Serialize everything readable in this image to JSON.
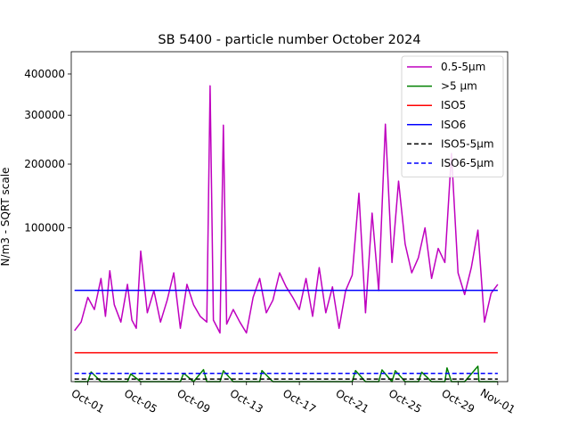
{
  "chart_data": {
    "type": "line",
    "title": "SB 5400 - particle number October 2024",
    "ylabel": "N/m3 - SQRT scale",
    "xlabel": "",
    "y_scale": "sqrt",
    "ylim": [
      0,
      460000
    ],
    "xlim": [
      "2024-09-29T18:00",
      "2024-11-01T18:00"
    ],
    "y_ticks": [
      {
        "value": 100000,
        "label": "100000"
      },
      {
        "value": 200000,
        "label": "200000"
      },
      {
        "value": 300000,
        "label": "300000"
      },
      {
        "value": 400000,
        "label": "400000"
      }
    ],
    "x_ticks": [
      {
        "value": "2024-10-01",
        "label": "Oct-01"
      },
      {
        "value": "2024-10-05",
        "label": "Oct-05"
      },
      {
        "value": "2024-10-09",
        "label": "Oct-09"
      },
      {
        "value": "2024-10-13",
        "label": "Oct-13"
      },
      {
        "value": "2024-10-17",
        "label": "Oct-17"
      },
      {
        "value": "2024-10-21",
        "label": "Oct-21"
      },
      {
        "value": "2024-10-25",
        "label": "Oct-25"
      },
      {
        "value": "2024-10-29",
        "label": "Oct-29"
      },
      {
        "value": "2024-11-01",
        "label": "Nov-01"
      }
    ],
    "grid": false,
    "legend_position": "top-right",
    "series": [
      {
        "name": "0.5-5µm",
        "color": "#bf00bf",
        "style": "solid",
        "x": [
          "2024-09-30T00:00",
          "2024-09-30T12:00",
          "2024-10-01T00:00",
          "2024-10-01T12:00",
          "2024-10-02T00:00",
          "2024-10-02T08:00",
          "2024-10-02T16:00",
          "2024-10-03T00:00",
          "2024-10-03T12:00",
          "2024-10-04T00:00",
          "2024-10-04T08:00",
          "2024-10-04T16:00",
          "2024-10-05T00:00",
          "2024-10-05T12:00",
          "2024-10-06T00:00",
          "2024-10-06T12:00",
          "2024-10-07T00:00",
          "2024-10-07T12:00",
          "2024-10-08T00:00",
          "2024-10-08T12:00",
          "2024-10-09T00:00",
          "2024-10-09T12:00",
          "2024-10-10T00:00",
          "2024-10-10T06:00",
          "2024-10-10T12:00",
          "2024-10-11T00:00",
          "2024-10-11T06:00",
          "2024-10-11T12:00",
          "2024-10-12T00:00",
          "2024-10-12T12:00",
          "2024-10-13T00:00",
          "2024-10-13T12:00",
          "2024-10-14T00:00",
          "2024-10-14T12:00",
          "2024-10-15T00:00",
          "2024-10-15T12:00",
          "2024-10-16T00:00",
          "2024-10-16T12:00",
          "2024-10-17T00:00",
          "2024-10-17T12:00",
          "2024-10-18T00:00",
          "2024-10-18T12:00",
          "2024-10-19T00:00",
          "2024-10-19T12:00",
          "2024-10-20T00:00",
          "2024-10-20T12:00",
          "2024-10-21T00:00",
          "2024-10-21T12:00",
          "2024-10-22T00:00",
          "2024-10-22T12:00",
          "2024-10-23T00:00",
          "2024-10-23T12:00",
          "2024-10-24T00:00",
          "2024-10-24T12:00",
          "2024-10-25T00:00",
          "2024-10-25T12:00",
          "2024-10-26T00:00",
          "2024-10-26T12:00",
          "2024-10-27T00:00",
          "2024-10-27T12:00",
          "2024-10-28T00:00",
          "2024-10-28T12:00",
          "2024-10-29T00:00",
          "2024-10-29T12:00",
          "2024-10-30T00:00",
          "2024-10-30T12:00",
          "2024-10-31T00:00",
          "2024-10-31T12:00",
          "2024-11-01T00:00"
        ],
        "y": [
          11000,
          15000,
          30000,
          22000,
          45000,
          18000,
          52000,
          25000,
          15000,
          40000,
          16000,
          12000,
          72000,
          20000,
          35000,
          15000,
          28000,
          50000,
          12000,
          40000,
          25000,
          18000,
          15000,
          370000,
          16000,
          10000,
          278000,
          14000,
          22000,
          15000,
          10000,
          30000,
          45000,
          20000,
          28000,
          50000,
          38000,
          30000,
          22000,
          45000,
          18000,
          55000,
          20000,
          38000,
          12000,
          35000,
          48000,
          150000,
          20000,
          120000,
          35000,
          280000,
          60000,
          170000,
          80000,
          50000,
          65000,
          100000,
          45000,
          75000,
          60000,
          220000,
          50000,
          32000,
          55000,
          97000,
          15000,
          33000,
          40000
        ]
      },
      {
        "name": ">5 µm",
        "color": "#008000",
        "style": "solid",
        "x": [
          "2024-09-30T00:00",
          "2024-10-01T00:00",
          "2024-10-01T06:00",
          "2024-10-02T00:00",
          "2024-10-04T00:00",
          "2024-10-04T06:00",
          "2024-10-05T00:00",
          "2024-10-08T00:00",
          "2024-10-08T06:00",
          "2024-10-09T00:00",
          "2024-10-09T18:00",
          "2024-10-10T00:00",
          "2024-10-11T00:00",
          "2024-10-11T06:00",
          "2024-10-12T00:00",
          "2024-10-14T00:00",
          "2024-10-14T04:00",
          "2024-10-15T00:00",
          "2024-10-21T00:00",
          "2024-10-21T06:00",
          "2024-10-22T00:00",
          "2024-10-23T00:00",
          "2024-10-23T06:00",
          "2024-10-24T00:00",
          "2024-10-24T06:00",
          "2024-10-25T00:00",
          "2024-10-26T00:00",
          "2024-10-26T06:00",
          "2024-10-27T00:00",
          "2024-10-28T00:00",
          "2024-10-28T04:00",
          "2024-10-28T12:00",
          "2024-10-29T12:00",
          "2024-10-30T12:00",
          "2024-10-30T14:00",
          "2024-10-31T00:00",
          "2024-11-01T00:00"
        ],
        "y": [
          0,
          0,
          400,
          0,
          0,
          250,
          0,
          0,
          300,
          0,
          600,
          0,
          0,
          500,
          0,
          0,
          520,
          0,
          0,
          520,
          0,
          0,
          580,
          0,
          500,
          0,
          0,
          380,
          0,
          0,
          800,
          0,
          0,
          1000,
          0,
          0,
          0
        ]
      },
      {
        "name": "ISO5",
        "color": "#ff0000",
        "style": "solid",
        "x": [
          "2024-09-30T00:00",
          "2024-11-01T00:00"
        ],
        "y": [
          3520,
          3520
        ]
      },
      {
        "name": "ISO6",
        "color": "#0000ff",
        "style": "solid",
        "x": [
          "2024-09-30T00:00",
          "2024-11-01T00:00"
        ],
        "y": [
          35200,
          35200
        ]
      },
      {
        "name": "ISO5-5µm",
        "color": "#000000",
        "style": "dashed",
        "x": [
          "2024-09-30T00:00",
          "2024-11-01T00:00"
        ],
        "y": [
          29,
          29
        ]
      },
      {
        "name": "ISO6-5µm",
        "color": "#0000ff",
        "style": "dashed",
        "x": [
          "2024-09-30T00:00",
          "2024-11-01T00:00"
        ],
        "y": [
          293,
          293
        ]
      }
    ]
  }
}
